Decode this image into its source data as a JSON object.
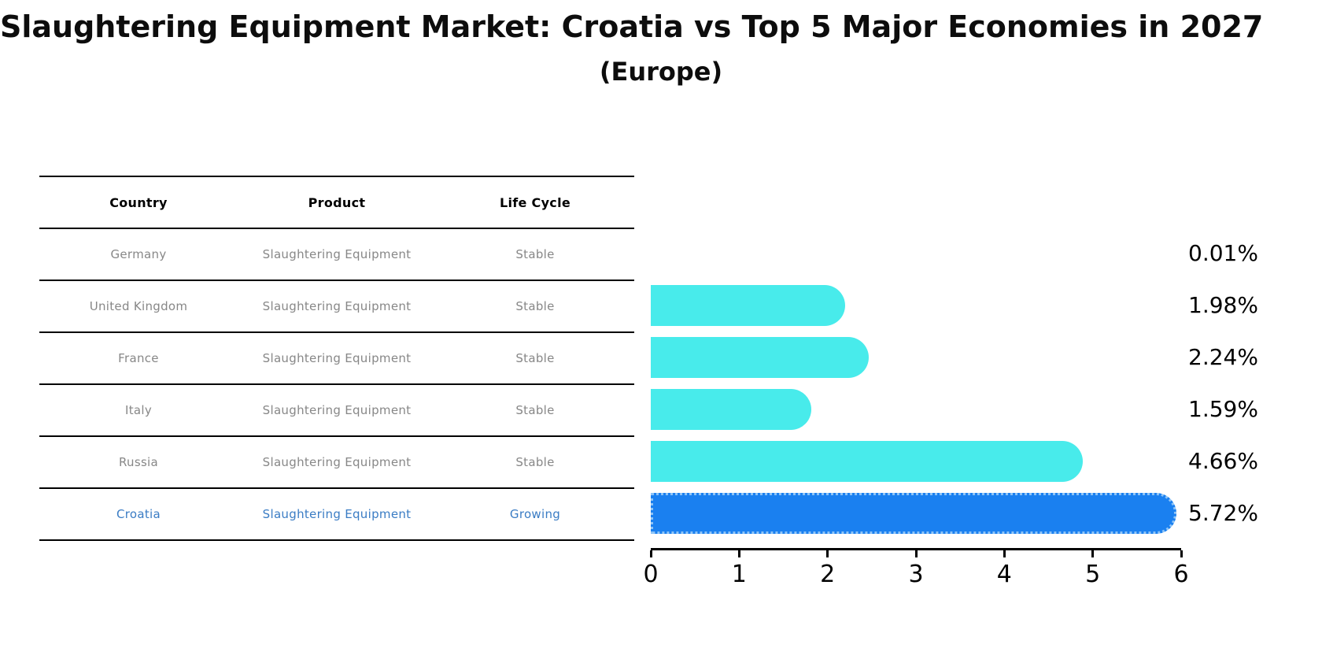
{
  "title": "Slaughtering Equipment Market: Croatia vs Top 5 Major Economies in 2027",
  "subtitle": "(Europe)",
  "table": {
    "headers": [
      "Country",
      "Product",
      "Life Cycle"
    ],
    "rows": [
      {
        "country": "Germany",
        "product": "Slaughtering Equipment",
        "life_cycle": "Stable",
        "highlight": false
      },
      {
        "country": "United Kingdom",
        "product": "Slaughtering Equipment",
        "life_cycle": "Stable",
        "highlight": false
      },
      {
        "country": "France",
        "product": "Slaughtering Equipment",
        "life_cycle": "Stable",
        "highlight": false
      },
      {
        "country": "Italy",
        "product": "Slaughtering Equipment",
        "life_cycle": "Stable",
        "highlight": false
      },
      {
        "country": "Russia",
        "product": "Slaughtering Equipment",
        "life_cycle": "Stable",
        "highlight": false
      },
      {
        "country": "Croatia",
        "product": "Slaughtering Equipment",
        "life_cycle": "Growing",
        "highlight": true
      }
    ]
  },
  "chart_data": {
    "type": "bar",
    "orientation": "horizontal",
    "title": "Slaughtering Equipment Market: Croatia vs Top 5 Major Economies in 2027",
    "subtitle": "(Europe)",
    "categories": [
      "Germany",
      "United Kingdom",
      "France",
      "Italy",
      "Russia",
      "Croatia"
    ],
    "values": [
      0.01,
      1.98,
      2.24,
      1.59,
      4.66,
      5.72
    ],
    "value_labels": [
      "0.01%",
      "1.98%",
      "2.24%",
      "1.59%",
      "4.66%",
      "5.72%"
    ],
    "xlabel": "",
    "ylabel": "",
    "xlim": [
      0,
      6
    ],
    "x_ticks": [
      0,
      1,
      2,
      3,
      4,
      5,
      6
    ],
    "grid": false,
    "legend": false,
    "highlight_index": 5
  },
  "colors": {
    "bar": "#48ebeb",
    "highlight_bar": "#1a80f0",
    "highlight_border": "#8ec4f7",
    "row_text": "#878787",
    "highlight_text": "#3a7cc4",
    "axis": "#000000"
  }
}
